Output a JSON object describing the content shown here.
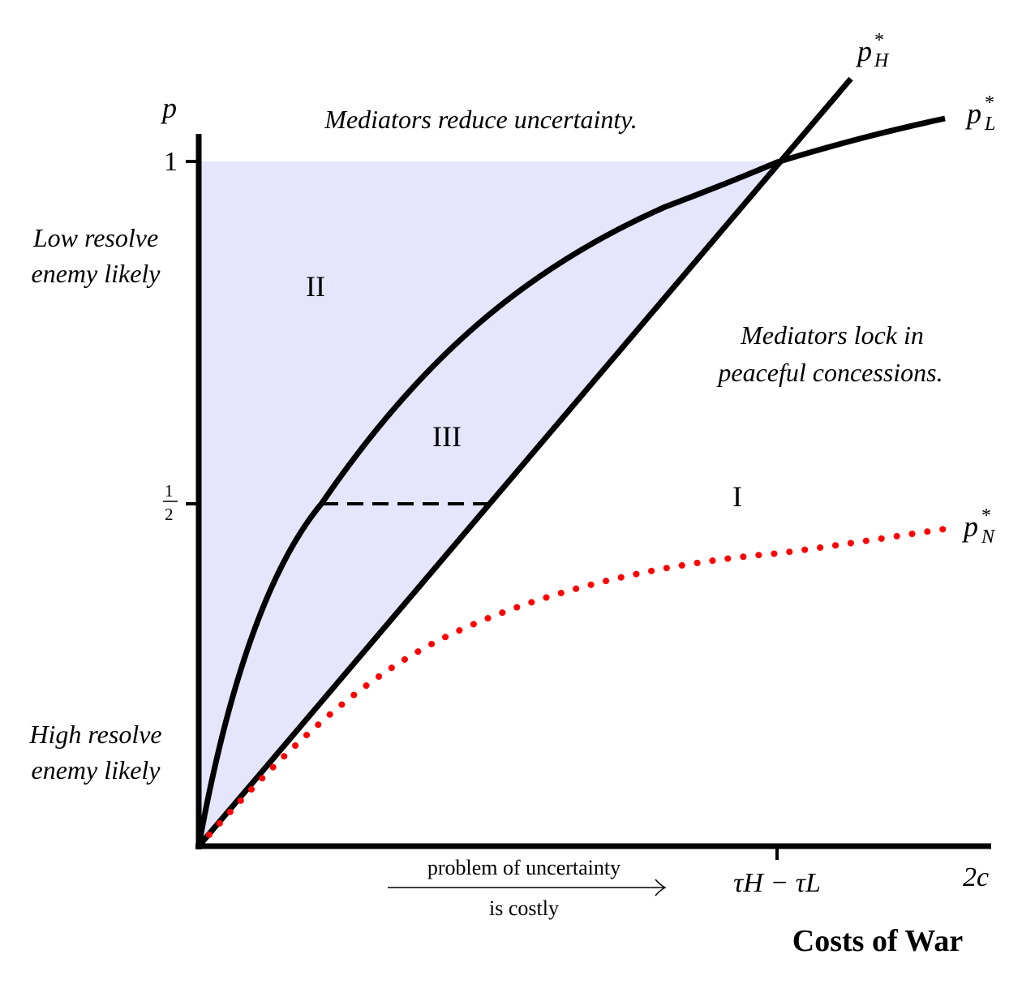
{
  "axes": {
    "y_symbol": "p",
    "y_tick_1": "1",
    "y_tick_half_num": "1",
    "y_tick_half_den": "2",
    "x_tick_mid": "τH − τL",
    "x_tick_end": "2c",
    "x_title": "Costs of War"
  },
  "annotations": {
    "top_text": "Mediators reduce uncertainty.",
    "right_text_1": "Mediators lock in",
    "right_text_2": "peaceful concessions.",
    "left_top_1": "Low resolve",
    "left_top_2": "enemy likely",
    "left_bottom_1": "High resolve",
    "left_bottom_2": "enemy likely",
    "arrow_text_1": "problem of uncertainty",
    "arrow_text_2": "is costly"
  },
  "regions": {
    "r1": "I",
    "r2": "II",
    "r3": "III"
  },
  "curves": {
    "pH": {
      "base": "p",
      "sup": "*",
      "sub": "H"
    },
    "pL": {
      "base": "p",
      "sup": "*",
      "sub": "L"
    },
    "pN": {
      "base": "p",
      "sup": "*",
      "sub": "N"
    }
  },
  "colors": {
    "shade": "#e5e5fc",
    "line": "#000000",
    "dotted": "#ff0000"
  }
}
